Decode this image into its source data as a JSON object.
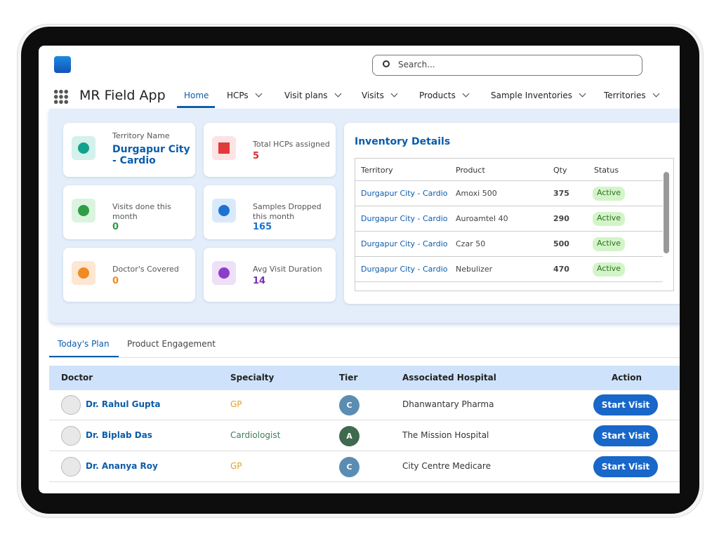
{
  "header": {
    "search_placeholder": "Search...",
    "app_name": "MR Field App",
    "nav": [
      "Home",
      "HCPs",
      "Visit plans",
      "Visits",
      "Products",
      "Sample Inventories",
      "Territories"
    ]
  },
  "stats": [
    {
      "label": "Territory Name",
      "value": "Durgapur City - Cardio"
    },
    {
      "label": "Total HCPs assigned",
      "value": 5
    },
    {
      "label": "Visits done this month",
      "value": 0
    },
    {
      "label": "Samples Dropped this month",
      "value": 165
    },
    {
      "label": "Doctor's Covered",
      "value": 0
    },
    {
      "label": "Avg Visit Duration",
      "value": 14
    }
  ],
  "inventory": {
    "title": "Inventory Details",
    "columns": [
      "Territory",
      "Product",
      "Qty",
      "Status"
    ],
    "rows": [
      [
        "Durgapur City - Cardio",
        "Amoxi 500",
        375,
        "Active"
      ],
      [
        "Durgapur City - Cardio",
        "Auroamtel 40",
        290,
        "Active"
      ],
      [
        "Durgapur City - Cardio",
        "Czar 50",
        500,
        "Active"
      ],
      [
        "Durgapur City - Cardio",
        "Nebulizer",
        470,
        "Active"
      ]
    ]
  },
  "tabs": [
    "Today's Plan",
    "Product Engagement"
  ],
  "plan": {
    "columns": [
      "Doctor",
      "Specialty",
      "Tier",
      "Associated Hospital",
      "Action"
    ],
    "rows": [
      [
        "Dr. Rahul Gupta",
        "GP",
        "C",
        "Dhanwantary Pharma",
        "Start Visit"
      ],
      [
        "Dr. Biplab Das",
        "Cardiologist",
        "A",
        "The Mission Hospital",
        "Start Visit"
      ],
      [
        "Dr. Ananya Roy",
        "GP",
        "C",
        "City Centre Medicare",
        "Start Visit"
      ]
    ]
  }
}
